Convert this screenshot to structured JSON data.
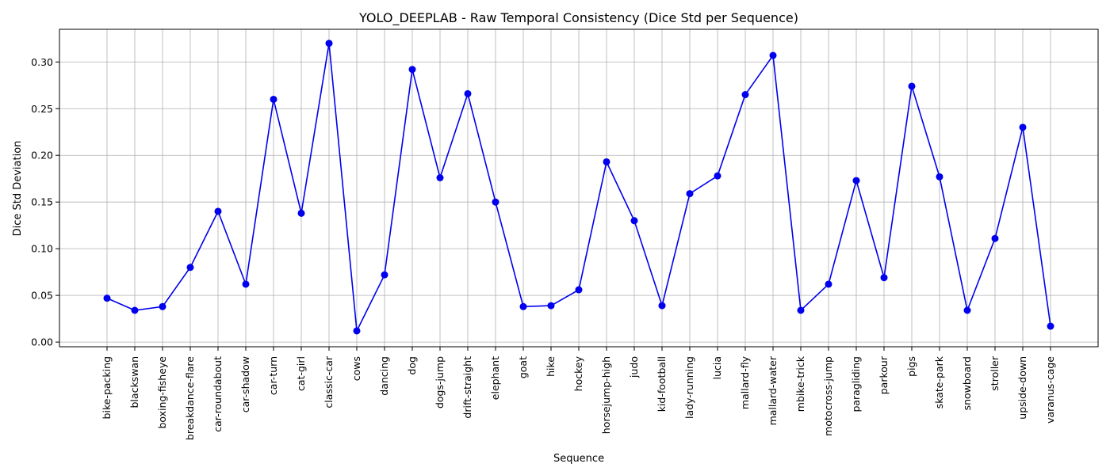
{
  "chart_data": {
    "type": "line",
    "title": "YOLO_DEEPLAB - Raw Temporal Consistency (Dice Std per Sequence)",
    "xlabel": "Sequence",
    "ylabel": "Dice Std Deviation",
    "ylim": [
      -0.005,
      0.335
    ],
    "yticks": [
      0.0,
      0.05,
      0.1,
      0.15,
      0.2,
      0.25,
      0.3
    ],
    "ytick_labels": [
      "0.00",
      "0.05",
      "0.10",
      "0.15",
      "0.20",
      "0.25",
      "0.30"
    ],
    "grid": true,
    "series_color": "#0000ee",
    "marker": "circle",
    "categories": [
      "bike-packing",
      "blackswan",
      "boxing-fisheye",
      "breakdance-flare",
      "car-roundabout",
      "car-shadow",
      "car-turn",
      "cat-girl",
      "classic-car",
      "cows",
      "dancing",
      "dog",
      "dogs-jump",
      "drift-straight",
      "elephant",
      "goat",
      "hike",
      "hockey",
      "horsejump-high",
      "judo",
      "kid-football",
      "lady-running",
      "lucia",
      "mallard-fly",
      "mallard-water",
      "mbike-trick",
      "motocross-jump",
      "paragliding",
      "parkour",
      "pigs",
      "skate-park",
      "snowboard",
      "stroller",
      "upside-down",
      "varanus-cage"
    ],
    "values": [
      0.047,
      0.034,
      0.038,
      0.08,
      0.14,
      0.062,
      0.26,
      0.138,
      0.32,
      0.012,
      0.072,
      0.292,
      0.176,
      0.266,
      0.15,
      0.038,
      0.039,
      0.056,
      0.193,
      0.13,
      0.039,
      0.159,
      0.178,
      0.265,
      0.307,
      0.034,
      0.062,
      0.173,
      0.069,
      0.274,
      0.177,
      0.034,
      0.111,
      0.23,
      0.017
    ]
  }
}
